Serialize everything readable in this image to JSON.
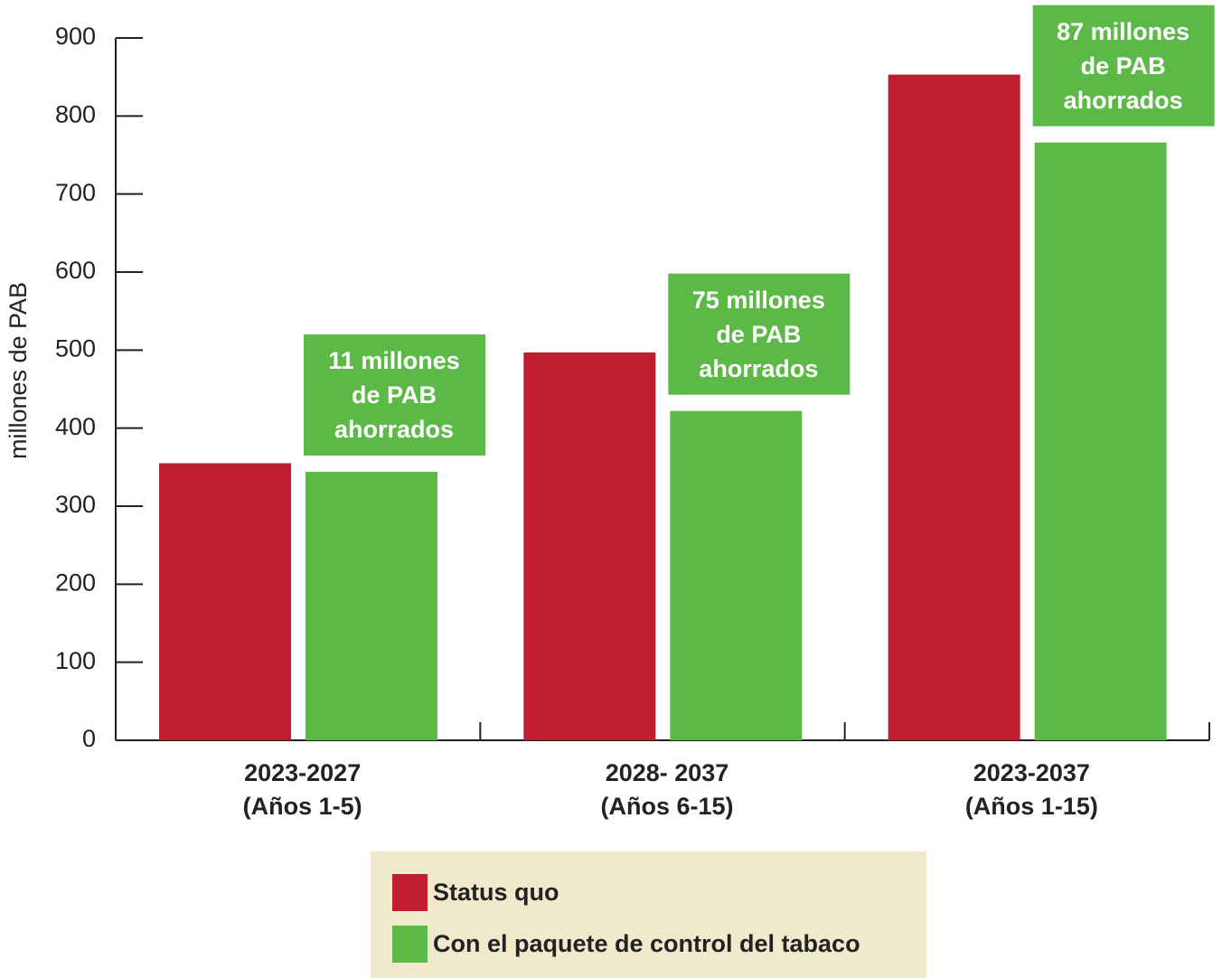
{
  "chart_data": {
    "type": "bar",
    "ylabel": "millones de PAB",
    "categories": [
      [
        "2023-2027",
        "(Años 1-5)"
      ],
      [
        "2028- 2037",
        "(Años 6-15)"
      ],
      [
        "2023-2037",
        "(Años 1-15)"
      ]
    ],
    "series": [
      {
        "name": "Status quo",
        "color": "#be1e2d",
        "values": [
          355,
          497,
          853
        ]
      },
      {
        "name": "Con el paquete de control del tabaco",
        "color": "#5cb948",
        "values": [
          344,
          422,
          766
        ]
      }
    ],
    "annotations": [
      [
        "11 millones",
        "de PAB",
        "ahorrados"
      ],
      [
        "75 millones",
        "de PAB",
        "ahorrados"
      ],
      [
        "87 millones",
        "de PAB",
        "ahorrados"
      ]
    ],
    "ylim": [
      0,
      900
    ],
    "yticks": [
      0,
      100,
      200,
      300,
      400,
      500,
      600,
      700,
      800,
      900
    ],
    "legend_background": "#f1e9cc"
  }
}
